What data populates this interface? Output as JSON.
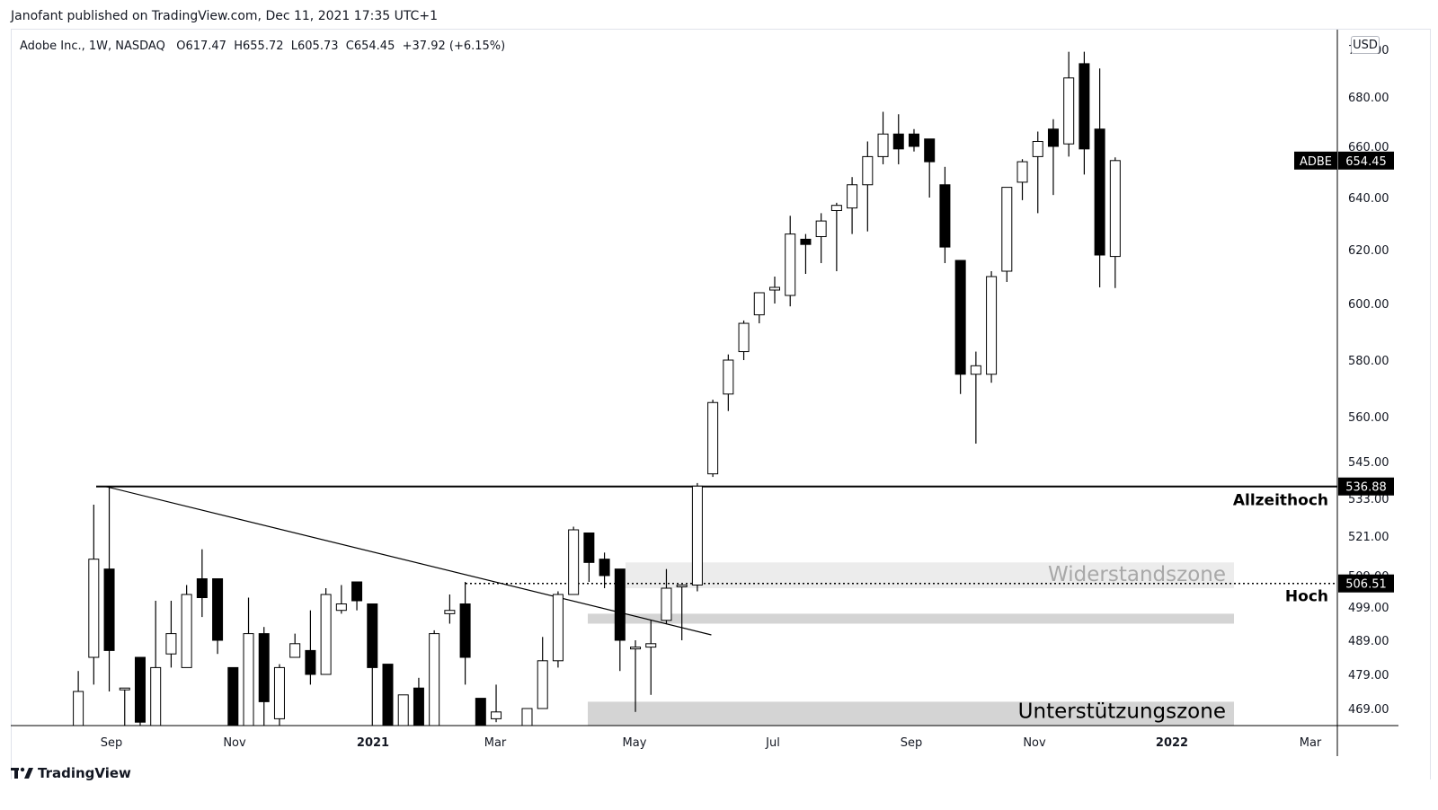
{
  "header": {
    "published": "Janofant published on TradingView.com, Dec 11, 2021 17:35 UTC+1"
  },
  "legend": {
    "symbol": "Adobe Inc., 1W, NASDAQ",
    "o_label": "O",
    "o": "617.47",
    "h_label": "H",
    "h": "655.72",
    "l_label": "L",
    "l": "605.73",
    "c_label": "C",
    "c": "654.45",
    "change": "+37.92 (+6.15%)"
  },
  "currency_button": "USD",
  "footer": {
    "brand": "TradingView"
  },
  "colors": {
    "up_fill": "#ffffff",
    "down_fill": "#000000",
    "zone_light": "#ececec",
    "zone_mid": "#d4d4d4"
  },
  "chart_data": {
    "type": "candlestick",
    "timeframe": "1W",
    "y_axis_ticks": [
      "469.00",
      "479.00",
      "489.00",
      "499.00",
      "509.00",
      "521.00",
      "533.00",
      "545.00",
      "560.00",
      "580.00",
      "600.00",
      "620.00",
      "640.00",
      "660.00",
      "680.00",
      "700.00"
    ],
    "x_axis_ticks": [
      "Sep",
      "Nov",
      "2021",
      "Mar",
      "May",
      "Jul",
      "Sep",
      "Nov",
      "2022",
      "Mar"
    ],
    "price_labels": {
      "last_symbol": "ADBE",
      "last_price": "654.45",
      "ath": "536.88",
      "high": "506.51"
    },
    "annotations": {
      "ath_label": "Allzeithoch",
      "high_label": "Hoch",
      "resistance_label": "Widerstandszone",
      "support_label": "Unterstützungszone"
    },
    "levels": {
      "ath": 536.88,
      "high": 506.51
    },
    "zones": [
      {
        "name": "resistance",
        "from": 505,
        "to": 513
      },
      {
        "name": "near-high",
        "from": 494,
        "to": 497
      },
      {
        "name": "support",
        "from": 463,
        "to": 471
      }
    ],
    "candles": [
      {
        "x": "2020-08-17",
        "o": 462,
        "h": 480,
        "l": 460,
        "c": 474
      },
      {
        "x": "2020-08-24",
        "o": 484,
        "h": 531,
        "l": 476,
        "c": 514
      },
      {
        "x": "2020-08-31",
        "o": 511,
        "h": 536.88,
        "l": 474,
        "c": 486
      },
      {
        "x": "2020-09-07",
        "o": 475,
        "h": 475,
        "l": 463,
        "c": 475
      },
      {
        "x": "2020-09-14",
        "o": 484,
        "h": 484,
        "l": 460,
        "c": 465
      },
      {
        "x": "2020-09-21",
        "o": 463,
        "h": 501,
        "l": 460,
        "c": 481
      },
      {
        "x": "2020-09-28",
        "o": 485,
        "h": 501,
        "l": 481,
        "c": 491
      },
      {
        "x": "2020-10-05",
        "o": 481,
        "h": 506,
        "l": 481,
        "c": 503
      },
      {
        "x": "2020-10-12",
        "o": 508,
        "h": 517,
        "l": 496,
        "c": 502
      },
      {
        "x": "2020-10-19",
        "o": 508,
        "h": 508,
        "l": 485,
        "c": 489
      },
      {
        "x": "2020-10-26",
        "o": 481,
        "h": 481,
        "l": 456,
        "c": 459
      },
      {
        "x": "2020-11-02",
        "o": 458,
        "h": 502,
        "l": 455,
        "c": 491
      },
      {
        "x": "2020-11-09",
        "o": 491,
        "h": 493,
        "l": 461,
        "c": 471
      },
      {
        "x": "2020-11-16",
        "o": 466,
        "h": 482,
        "l": 462,
        "c": 481
      },
      {
        "x": "2020-11-23",
        "o": 484,
        "h": 491,
        "l": 484,
        "c": 488
      },
      {
        "x": "2020-11-30",
        "o": 486,
        "h": 498,
        "l": 476,
        "c": 479
      },
      {
        "x": "2020-12-07",
        "o": 479,
        "h": 505,
        "l": 479,
        "c": 503
      },
      {
        "x": "2020-12-14",
        "o": 498,
        "h": 506,
        "l": 497,
        "c": 500
      },
      {
        "x": "2020-12-21",
        "o": 507,
        "h": 507,
        "l": 498,
        "c": 501
      },
      {
        "x": "2020-12-28",
        "o": 500,
        "h": 500,
        "l": 464,
        "c": 481
      },
      {
        "x": "2021-01-04",
        "o": 482,
        "h": 482,
        "l": 454,
        "c": 459
      },
      {
        "x": "2021-01-11",
        "o": 457,
        "h": 473,
        "l": 456,
        "c": 473
      },
      {
        "x": "2021-01-18",
        "o": 475,
        "h": 478,
        "l": 460,
        "c": 462
      },
      {
        "x": "2021-01-25",
        "o": 461,
        "h": 492,
        "l": 461,
        "c": 491
      },
      {
        "x": "2021-02-01",
        "o": 497,
        "h": 503,
        "l": 494,
        "c": 498
      },
      {
        "x": "2021-02-08",
        "o": 500,
        "h": 507,
        "l": 476,
        "c": 484
      },
      {
        "x": "2021-02-15",
        "o": 472,
        "h": 472,
        "l": 453,
        "c": 456
      },
      {
        "x": "2021-02-22",
        "o": 466,
        "h": 476,
        "l": 465,
        "c": 468
      },
      {
        "x": "2021-03-01",
        "o": 464,
        "h": 464,
        "l": 441,
        "c": 459
      },
      {
        "x": "2021-03-08",
        "o": 459,
        "h": 469,
        "l": 458,
        "c": 469
      },
      {
        "x": "2021-03-15",
        "o": 469,
        "h": 490,
        "l": 469,
        "c": 483
      },
      {
        "x": "2021-03-22",
        "o": 483,
        "h": 504,
        "l": 481,
        "c": 503
      },
      {
        "x": "2021-03-29",
        "o": 503,
        "h": 524,
        "l": 503,
        "c": 523
      },
      {
        "x": "2021-04-05",
        "o": 522,
        "h": 522,
        "l": 507,
        "c": 513
      },
      {
        "x": "2021-04-12",
        "o": 514,
        "h": 516,
        "l": 505,
        "c": 509
      },
      {
        "x": "2021-04-19",
        "o": 511,
        "h": 511,
        "l": 480,
        "c": 489
      },
      {
        "x": "2021-04-26",
        "o": 487,
        "h": 489,
        "l": 468,
        "c": 487
      },
      {
        "x": "2021-05-03",
        "o": 487,
        "h": 495,
        "l": 473,
        "c": 488
      },
      {
        "x": "2021-05-10",
        "o": 495,
        "h": 511,
        "l": 494,
        "c": 505
      },
      {
        "x": "2021-05-17",
        "o": 506,
        "h": 506,
        "l": 489,
        "c": 506
      },
      {
        "x": "2021-05-24",
        "o": 506,
        "h": 538,
        "l": 504,
        "c": 537
      },
      {
        "x": "2021-05-31",
        "o": 541,
        "h": 566,
        "l": 540,
        "c": 565
      },
      {
        "x": "2021-06-07",
        "o": 568,
        "h": 582,
        "l": 562,
        "c": 580
      },
      {
        "x": "2021-06-14",
        "o": 583,
        "h": 594,
        "l": 580,
        "c": 593
      },
      {
        "x": "2021-06-21",
        "o": 596,
        "h": 604,
        "l": 593,
        "c": 604
      },
      {
        "x": "2021-06-28",
        "o": 605,
        "h": 610,
        "l": 600,
        "c": 606
      },
      {
        "x": "2021-07-05",
        "o": 603,
        "h": 633,
        "l": 599,
        "c": 626
      },
      {
        "x": "2021-07-12",
        "o": 624,
        "h": 626,
        "l": 611,
        "c": 622
      },
      {
        "x": "2021-07-19",
        "o": 625,
        "h": 634,
        "l": 615,
        "c": 631
      },
      {
        "x": "2021-07-26",
        "o": 635,
        "h": 638,
        "l": 612,
        "c": 637
      },
      {
        "x": "2021-08-02",
        "o": 636,
        "h": 648,
        "l": 626,
        "c": 645
      },
      {
        "x": "2021-08-09",
        "o": 645,
        "h": 662,
        "l": 627,
        "c": 656
      },
      {
        "x": "2021-08-16",
        "o": 656,
        "h": 674,
        "l": 653,
        "c": 665
      },
      {
        "x": "2021-08-23",
        "o": 665,
        "h": 673,
        "l": 653,
        "c": 659
      },
      {
        "x": "2021-08-30",
        "o": 665,
        "h": 667,
        "l": 658,
        "c": 660
      },
      {
        "x": "2021-09-06",
        "o": 663,
        "h": 663,
        "l": 640,
        "c": 654
      },
      {
        "x": "2021-09-13",
        "o": 645,
        "h": 652,
        "l": 615,
        "c": 621
      },
      {
        "x": "2021-09-20",
        "o": 616,
        "h": 616,
        "l": 568,
        "c": 575
      },
      {
        "x": "2021-09-27",
        "o": 575,
        "h": 583,
        "l": 551,
        "c": 578
      },
      {
        "x": "2021-10-04",
        "o": 575,
        "h": 612,
        "l": 572,
        "c": 610
      },
      {
        "x": "2021-10-11",
        "o": 612,
        "h": 644,
        "l": 608,
        "c": 644
      },
      {
        "x": "2021-10-18",
        "o": 646,
        "h": 655,
        "l": 639,
        "c": 654
      },
      {
        "x": "2021-10-25",
        "o": 656,
        "h": 666,
        "l": 634,
        "c": 662
      },
      {
        "x": "2021-11-01",
        "o": 667,
        "h": 671,
        "l": 641,
        "c": 660
      },
      {
        "x": "2021-11-08",
        "o": 661,
        "h": 699,
        "l": 656,
        "c": 688
      },
      {
        "x": "2021-11-15",
        "o": 694,
        "h": 699,
        "l": 649,
        "c": 659
      },
      {
        "x": "2021-11-22",
        "o": 667,
        "h": 692,
        "l": 606,
        "c": 618
      },
      {
        "x": "2021-11-29",
        "o": 617.47,
        "h": 655.72,
        "l": 605.73,
        "c": 654.45
      }
    ],
    "trendline": {
      "from": {
        "x": "2020-08-31",
        "y": 536.88
      },
      "to": {
        "x": "2021-05-10",
        "y": 489
      }
    }
  }
}
